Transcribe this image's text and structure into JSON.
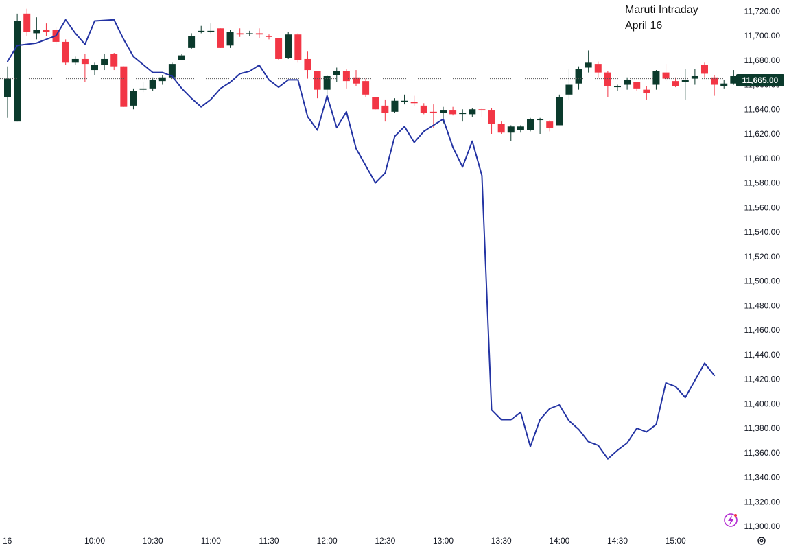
{
  "title": {
    "line1": "Maruti Intraday",
    "line2": "April 16"
  },
  "current_price_label": "11,665.00",
  "date_marker": "16",
  "colors": {
    "up": "#0b3a2c",
    "down": "#f23645",
    "line": "#2333a3",
    "price_label_bg": "#0b3a2c",
    "logo": "#b32ad1"
  },
  "icons": {
    "logo": "tradingview-bolt-icon",
    "settings": "gear-icon"
  },
  "chart_data": {
    "type": "line",
    "title": "Maruti Intraday April 16",
    "ylim": [
      11300,
      11720
    ],
    "y_ticks": [
      11300,
      11320,
      11340,
      11360,
      11380,
      11400,
      11420,
      11440,
      11460,
      11480,
      11500,
      11520,
      11540,
      11560,
      11580,
      11600,
      11620,
      11640,
      11660,
      11680,
      11700,
      11720
    ],
    "y_tick_labels": [
      "11,300.00",
      "11,320.00",
      "11,340.00",
      "11,360.00",
      "11,380.00",
      "11,400.00",
      "11,420.00",
      "11,440.00",
      "11,460.00",
      "11,480.00",
      "11,500.00",
      "11,520.00",
      "11,540.00",
      "11,560.00",
      "11,580.00",
      "11,600.00",
      "11,620.00",
      "11,640.00",
      "11,660.00",
      "11,680.00",
      "11,700.00",
      "11,720.00"
    ],
    "x_ticks": [
      "10:00",
      "10:30",
      "11:00",
      "11:30",
      "12:00",
      "12:30",
      "13:00",
      "13:30",
      "14:00",
      "14:30",
      "15:00"
    ],
    "x_range": [
      "09:15",
      "15:25"
    ],
    "last_price": 11665,
    "grid": false,
    "candles": [
      {
        "t": "09:15",
        "o": 11650,
        "h": 11675,
        "l": 11633,
        "c": 11665
      },
      {
        "t": "09:20",
        "o": 11630,
        "h": 11718,
        "l": 11630,
        "c": 11712
      },
      {
        "t": "09:25",
        "o": 11718,
        "h": 11722,
        "l": 11700,
        "c": 11703
      },
      {
        "t": "09:30",
        "o": 11702,
        "h": 11715,
        "l": 11697,
        "c": 11705
      },
      {
        "t": "09:35",
        "o": 11705,
        "h": 11710,
        "l": 11700,
        "c": 11703
      },
      {
        "t": "09:40",
        "o": 11705,
        "h": 11707,
        "l": 11693,
        "c": 11695
      },
      {
        "t": "09:45",
        "o": 11695,
        "h": 11697,
        "l": 11676,
        "c": 11678
      },
      {
        "t": "09:50",
        "o": 11678,
        "h": 11683,
        "l": 11676,
        "c": 11681
      },
      {
        "t": "09:55",
        "o": 11681,
        "h": 11685,
        "l": 11662,
        "c": 11677
      },
      {
        "t": "10:00",
        "o": 11672,
        "h": 11678,
        "l": 11668,
        "c": 11676
      },
      {
        "t": "10:05",
        "o": 11676,
        "h": 11685,
        "l": 11672,
        "c": 11681
      },
      {
        "t": "10:10",
        "o": 11685,
        "h": 11686,
        "l": 11672,
        "c": 11675
      },
      {
        "t": "10:15",
        "o": 11675,
        "h": 11675,
        "l": 11642,
        "c": 11642
      },
      {
        "t": "10:20",
        "o": 11643,
        "h": 11657,
        "l": 11640,
        "c": 11655
      },
      {
        "t": "10:25",
        "o": 11656,
        "h": 11662,
        "l": 11654,
        "c": 11657
      },
      {
        "t": "10:30",
        "o": 11657,
        "h": 11666,
        "l": 11655,
        "c": 11664
      },
      {
        "t": "10:35",
        "o": 11663,
        "h": 11668,
        "l": 11660,
        "c": 11666
      },
      {
        "t": "10:40",
        "o": 11666,
        "h": 11678,
        "l": 11665,
        "c": 11677
      },
      {
        "t": "10:45",
        "o": 11680,
        "h": 11685,
        "l": 11680,
        "c": 11684
      },
      {
        "t": "10:50",
        "o": 11690,
        "h": 11702,
        "l": 11689,
        "c": 11700
      },
      {
        "t": "10:55",
        "o": 11703,
        "h": 11708,
        "l": 11702,
        "c": 11704
      },
      {
        "t": "11:00",
        "o": 11704,
        "h": 11710,
        "l": 11702,
        "c": 11704
      },
      {
        "t": "11:05",
        "o": 11706,
        "h": 11706,
        "l": 11690,
        "c": 11690
      },
      {
        "t": "11:10",
        "o": 11692,
        "h": 11705,
        "l": 11690,
        "c": 11703
      },
      {
        "t": "11:15",
        "o": 11702,
        "h": 11706,
        "l": 11699,
        "c": 11701
      },
      {
        "t": "11:20",
        "o": 11702,
        "h": 11704,
        "l": 11700,
        "c": 11702
      },
      {
        "t": "11:25",
        "o": 11702,
        "h": 11706,
        "l": 11698,
        "c": 11701
      },
      {
        "t": "11:30",
        "o": 11700,
        "h": 11701,
        "l": 11697,
        "c": 11699
      },
      {
        "t": "11:35",
        "o": 11698,
        "h": 11698,
        "l": 11680,
        "c": 11681
      },
      {
        "t": "11:40",
        "o": 11682,
        "h": 11703,
        "l": 11681,
        "c": 11701
      },
      {
        "t": "11:45",
        "o": 11701,
        "h": 11702,
        "l": 11678,
        "c": 11680
      },
      {
        "t": "11:50",
        "o": 11681,
        "h": 11687,
        "l": 11665,
        "c": 11672
      },
      {
        "t": "11:55",
        "o": 11671,
        "h": 11671,
        "l": 11649,
        "c": 11656
      },
      {
        "t": "12:00",
        "o": 11656,
        "h": 11668,
        "l": 11652,
        "c": 11667
      },
      {
        "t": "12:05",
        "o": 11668,
        "h": 11674,
        "l": 11662,
        "c": 11671
      },
      {
        "t": "12:10",
        "o": 11671,
        "h": 11673,
        "l": 11657,
        "c": 11663
      },
      {
        "t": "12:15",
        "o": 11666,
        "h": 11672,
        "l": 11659,
        "c": 11661
      },
      {
        "t": "12:20",
        "o": 11663,
        "h": 11665,
        "l": 11650,
        "c": 11652
      },
      {
        "t": "12:25",
        "o": 11650,
        "h": 11650,
        "l": 11640,
        "c": 11640
      },
      {
        "t": "12:30",
        "o": 11643,
        "h": 11648,
        "l": 11630,
        "c": 11637
      },
      {
        "t": "12:35",
        "o": 11638,
        "h": 11649,
        "l": 11637,
        "c": 11647
      },
      {
        "t": "12:40",
        "o": 11647,
        "h": 11652,
        "l": 11644,
        "c": 11647
      },
      {
        "t": "12:45",
        "o": 11646,
        "h": 11651,
        "l": 11643,
        "c": 11645
      },
      {
        "t": "12:50",
        "o": 11643,
        "h": 11645,
        "l": 11636,
        "c": 11637
      },
      {
        "t": "12:55",
        "o": 11638,
        "h": 11644,
        "l": 11625,
        "c": 11637
      },
      {
        "t": "13:00",
        "o": 11637,
        "h": 11642,
        "l": 11628,
        "c": 11639
      },
      {
        "t": "13:05",
        "o": 11639,
        "h": 11642,
        "l": 11635,
        "c": 11636
      },
      {
        "t": "13:10",
        "o": 11637,
        "h": 11640,
        "l": 11630,
        "c": 11637
      },
      {
        "t": "13:15",
        "o": 11636,
        "h": 11641,
        "l": 11634,
        "c": 11640
      },
      {
        "t": "13:20",
        "o": 11640,
        "h": 11641,
        "l": 11634,
        "c": 11639
      },
      {
        "t": "13:25",
        "o": 11639,
        "h": 11641,
        "l": 11620,
        "c": 11628
      },
      {
        "t": "13:30",
        "o": 11628,
        "h": 11630,
        "l": 11620,
        "c": 11621
      },
      {
        "t": "13:35",
        "o": 11621,
        "h": 11627,
        "l": 11614,
        "c": 11626
      },
      {
        "t": "13:40",
        "o": 11623,
        "h": 11627,
        "l": 11621,
        "c": 11626
      },
      {
        "t": "13:45",
        "o": 11623,
        "h": 11633,
        "l": 11622,
        "c": 11632
      },
      {
        "t": "13:50",
        "o": 11632,
        "h": 11633,
        "l": 11620,
        "c": 11632
      },
      {
        "t": "13:55",
        "o": 11630,
        "h": 11631,
        "l": 11622,
        "c": 11625
      },
      {
        "t": "14:00",
        "o": 11627,
        "h": 11652,
        "l": 11627,
        "c": 11650
      },
      {
        "t": "14:05",
        "o": 11652,
        "h": 11673,
        "l": 11648,
        "c": 11660
      },
      {
        "t": "14:10",
        "o": 11661,
        "h": 11675,
        "l": 11656,
        "c": 11673
      },
      {
        "t": "14:15",
        "o": 11674,
        "h": 11688,
        "l": 11670,
        "c": 11678
      },
      {
        "t": "14:20",
        "o": 11677,
        "h": 11679,
        "l": 11666,
        "c": 11670
      },
      {
        "t": "14:25",
        "o": 11670,
        "h": 11671,
        "l": 11650,
        "c": 11659
      },
      {
        "t": "14:30",
        "o": 11658,
        "h": 11660,
        "l": 11655,
        "c": 11659
      },
      {
        "t": "14:35",
        "o": 11660,
        "h": 11666,
        "l": 11656,
        "c": 11664
      },
      {
        "t": "14:40",
        "o": 11662,
        "h": 11662,
        "l": 11655,
        "c": 11657
      },
      {
        "t": "14:45",
        "o": 11656,
        "h": 11659,
        "l": 11648,
        "c": 11653
      },
      {
        "t": "14:50",
        "o": 11660,
        "h": 11672,
        "l": 11656,
        "c": 11671
      },
      {
        "t": "14:55",
        "o": 11670,
        "h": 11677,
        "l": 11663,
        "c": 11665
      },
      {
        "t": "15:00",
        "o": 11663,
        "h": 11666,
        "l": 11658,
        "c": 11659
      },
      {
        "t": "15:05",
        "o": 11662,
        "h": 11673,
        "l": 11648,
        "c": 11664
      },
      {
        "t": "15:10",
        "o": 11665,
        "h": 11673,
        "l": 11660,
        "c": 11667
      },
      {
        "t": "15:15",
        "o": 11676,
        "h": 11678,
        "l": 11666,
        "c": 11669
      },
      {
        "t": "15:20",
        "o": 11666,
        "h": 11668,
        "l": 11651,
        "c": 11660
      },
      {
        "t": "15:25",
        "o": 11659,
        "h": 11664,
        "l": 11657,
        "c": 11661
      },
      {
        "t": "15:30",
        "o": 11661,
        "h": 11672,
        "l": 11660,
        "c": 11667
      }
    ],
    "line_series": {
      "x": [
        "09:15",
        "09:20",
        "09:30",
        "09:40",
        "09:45",
        "09:50",
        "09:55",
        "10:00",
        "10:10",
        "10:15",
        "10:20",
        "10:30",
        "10:35",
        "10:40",
        "10:45",
        "10:50",
        "10:55",
        "11:00",
        "11:05",
        "11:10",
        "11:15",
        "11:20",
        "11:25",
        "11:30",
        "11:35",
        "11:40",
        "11:45",
        "11:50",
        "11:55",
        "12:00",
        "12:05",
        "12:10",
        "12:15",
        "12:20",
        "12:25",
        "12:30",
        "12:35",
        "12:40",
        "12:45",
        "12:50",
        "13:00",
        "13:05",
        "13:10",
        "13:15",
        "13:20",
        "13:25",
        "13:30",
        "13:35",
        "13:40",
        "13:45",
        "13:50",
        "13:55",
        "14:00",
        "14:05",
        "14:10",
        "14:15",
        "14:20",
        "14:25",
        "14:30",
        "14:35",
        "14:40",
        "14:45",
        "14:50",
        "14:55",
        "15:00",
        "15:05",
        "15:10",
        "15:15",
        "15:20"
      ],
      "values": [
        11679,
        11692,
        11694,
        11700,
        11713,
        11702,
        11693,
        11712,
        11713,
        11697,
        11683,
        11670,
        11670,
        11667,
        11657,
        11649,
        11642,
        11648,
        11657,
        11662,
        11669,
        11671,
        11676,
        11664,
        11658,
        11664,
        11664,
        11634,
        11623,
        11651,
        11625,
        11638,
        11608,
        11594,
        11580,
        11588,
        11618,
        11626,
        11613,
        11622,
        11632,
        11609,
        11593,
        11614,
        11586,
        11395,
        11387,
        11387,
        11393,
        11365,
        11387,
        11396,
        11399,
        11386,
        11379,
        11369,
        11366,
        11355,
        11362,
        11368,
        11380,
        11377,
        11383,
        11417,
        11414,
        11405,
        11419,
        11433,
        11423
      ]
    }
  }
}
